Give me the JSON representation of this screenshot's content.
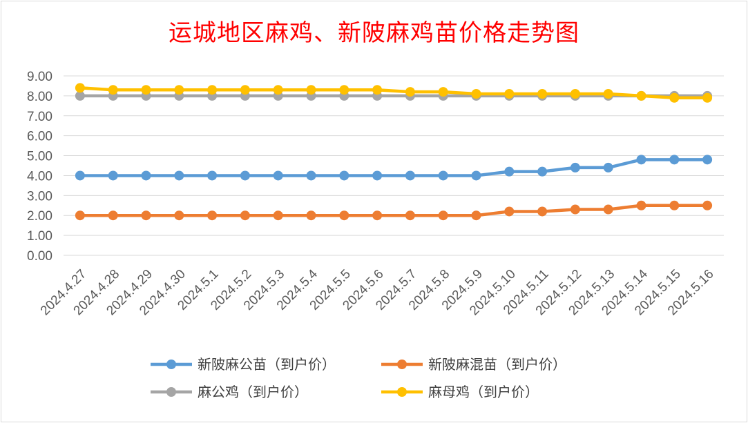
{
  "chart_data": {
    "type": "line",
    "title": "运城地区麻鸡、新陂麻鸡苗价格走势图",
    "xlabel": "",
    "ylabel": "",
    "ylim": [
      0,
      9
    ],
    "y_ticks": [
      "0.00",
      "1.00",
      "2.00",
      "3.00",
      "4.00",
      "5.00",
      "6.00",
      "7.00",
      "8.00",
      "9.00"
    ],
    "grid": true,
    "legend_position": "bottom",
    "categories": [
      "2024.4.27",
      "2024.4.28",
      "2024.4.29",
      "2024.4.30",
      "2024.5.1",
      "2024.5.2",
      "2024.5.3",
      "2024.5.4",
      "2024.5.5",
      "2024.5.6",
      "2024.5.7",
      "2024.5.8",
      "2024.5.9",
      "2024.5.10",
      "2024.5.11",
      "2024.5.12",
      "2024.5.13",
      "2024.5.14",
      "2024.5.15",
      "2024.5.16"
    ],
    "series": [
      {
        "name": "新陂麻公苗（到户价）",
        "color": "#5b9bd5",
        "values": [
          4.0,
          4.0,
          4.0,
          4.0,
          4.0,
          4.0,
          4.0,
          4.0,
          4.0,
          4.0,
          4.0,
          4.0,
          4.0,
          4.2,
          4.2,
          4.4,
          4.4,
          4.8,
          4.8,
          4.8
        ]
      },
      {
        "name": "新陂麻混苗（到户价）",
        "color": "#ed7d31",
        "values": [
          2.0,
          2.0,
          2.0,
          2.0,
          2.0,
          2.0,
          2.0,
          2.0,
          2.0,
          2.0,
          2.0,
          2.0,
          2.0,
          2.2,
          2.2,
          2.3,
          2.3,
          2.5,
          2.5,
          2.5
        ]
      },
      {
        "name": "麻公鸡（到户价）",
        "color": "#a5a5a5",
        "values": [
          8.0,
          8.0,
          8.0,
          8.0,
          8.0,
          8.0,
          8.0,
          8.0,
          8.0,
          8.0,
          8.0,
          8.0,
          8.0,
          8.0,
          8.0,
          8.0,
          8.0,
          8.0,
          8.0,
          8.0
        ]
      },
      {
        "name": "麻母鸡（到户价）",
        "color": "#ffc000",
        "values": [
          8.4,
          8.3,
          8.3,
          8.3,
          8.3,
          8.3,
          8.3,
          8.3,
          8.3,
          8.3,
          8.2,
          8.2,
          8.1,
          8.1,
          8.1,
          8.1,
          8.1,
          8.0,
          7.9,
          7.9
        ]
      }
    ]
  }
}
